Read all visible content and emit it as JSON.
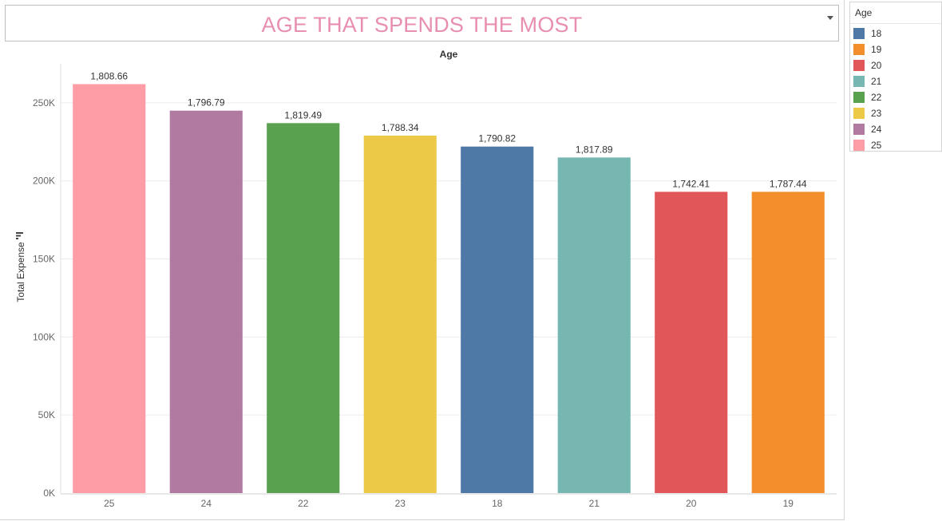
{
  "dashboard": {
    "title": "AGE THAT SPENDS THE MOST",
    "title_color": "#e88fb1"
  },
  "legend": {
    "title": "Age",
    "items": [
      {
        "label": "18",
        "color": "#4e79a7"
      },
      {
        "label": "19",
        "color": "#f28e2b"
      },
      {
        "label": "20",
        "color": "#e15759"
      },
      {
        "label": "21",
        "color": "#76b7b2"
      },
      {
        "label": "22",
        "color": "#59a14f"
      },
      {
        "label": "23",
        "color": "#edc948"
      },
      {
        "label": "24",
        "color": "#b07aa1"
      },
      {
        "label": "25",
        "color": "#ff9da7"
      }
    ]
  },
  "chart_data": {
    "type": "bar",
    "title": "",
    "xlabel": "Age",
    "xlabel_position": "top",
    "ylabel": "Total Expense",
    "ylim": [
      0,
      275000
    ],
    "yticks": [
      0,
      50000,
      100000,
      150000,
      200000,
      250000
    ],
    "ytick_labels": [
      "0K",
      "50K",
      "100K",
      "150K",
      "200K",
      "250K"
    ],
    "grid": true,
    "sort_icon": "sort-descending-icon",
    "categories": [
      "25",
      "24",
      "22",
      "23",
      "18",
      "21",
      "20",
      "19"
    ],
    "values": [
      262000,
      245000,
      237000,
      229000,
      222000,
      215000,
      193000,
      193000
    ],
    "data_labels": [
      "1,808.66",
      "1,796.79",
      "1,819.49",
      "1,788.34",
      "1,790.82",
      "1,817.89",
      "1,742.41",
      "1,787.44"
    ],
    "colors": [
      "#ff9da7",
      "#b07aa1",
      "#59a14f",
      "#edc948",
      "#4e79a7",
      "#76b7b2",
      "#e15759",
      "#f28e2b"
    ]
  }
}
